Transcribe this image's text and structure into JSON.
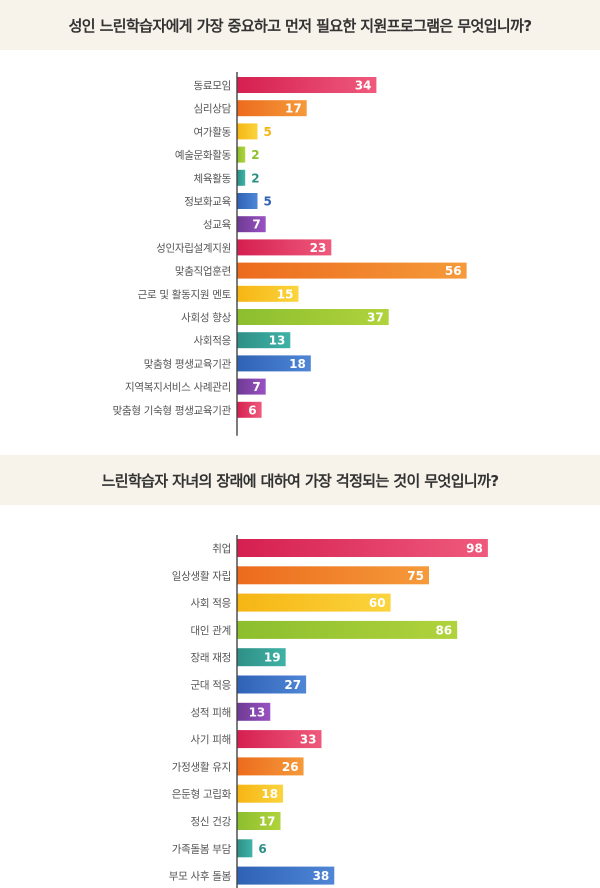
{
  "chart_data": [
    {
      "type": "bar",
      "title": "성인 느린학습자에게 가장 중요하고 먼저 필요한 지원프로그램은 무엇입니까?",
      "categories": [
        "동료모임",
        "심리상담",
        "여가활동",
        "예술문화활동",
        "체육활동",
        "정보화교육",
        "성교육",
        "성인자립설계지원",
        "맞춤직업훈련",
        "근로 및 활동지원 멘토",
        "사회성 향상",
        "사회적응",
        "맞춤형 평생교육기관",
        "지역복지서비스 사례관리",
        "맞춤형 기숙형 평생교육기관"
      ],
      "values": [
        34,
        17,
        5,
        2,
        2,
        5,
        7,
        23,
        56,
        15,
        37,
        13,
        18,
        7,
        6
      ],
      "grid": false,
      "legend": "none"
    },
    {
      "type": "bar",
      "title": "느린학습자 자녀의 장래에 대하여 가장 걱정되는 것이 무엇입니까?",
      "categories": [
        "취업",
        "일상생활 자립",
        "사회 적응",
        "대인 관계",
        "장래 재정",
        "군대 적응",
        "성적 피해",
        "사기 피해",
        "가정생활 유지",
        "은둔형 고립화",
        "정신 건강",
        "가족돌봄 부담",
        "부모 사후 돌봄"
      ],
      "values": [
        98,
        75,
        60,
        86,
        19,
        27,
        13,
        33,
        26,
        18,
        17,
        6,
        38
      ],
      "grid": false,
      "legend": "none"
    }
  ],
  "palette": [
    "#d51f50",
    "#ec6b1d",
    "#f6b514",
    "#8cbe2e",
    "#2e8f86",
    "#2f62b5",
    "#6e3a94"
  ],
  "palette_light": [
    "#ef5a7c",
    "#f59a3a",
    "#fbd43d",
    "#b0d33c",
    "#3fb2a6",
    "#4f86d6",
    "#9a52c2"
  ]
}
